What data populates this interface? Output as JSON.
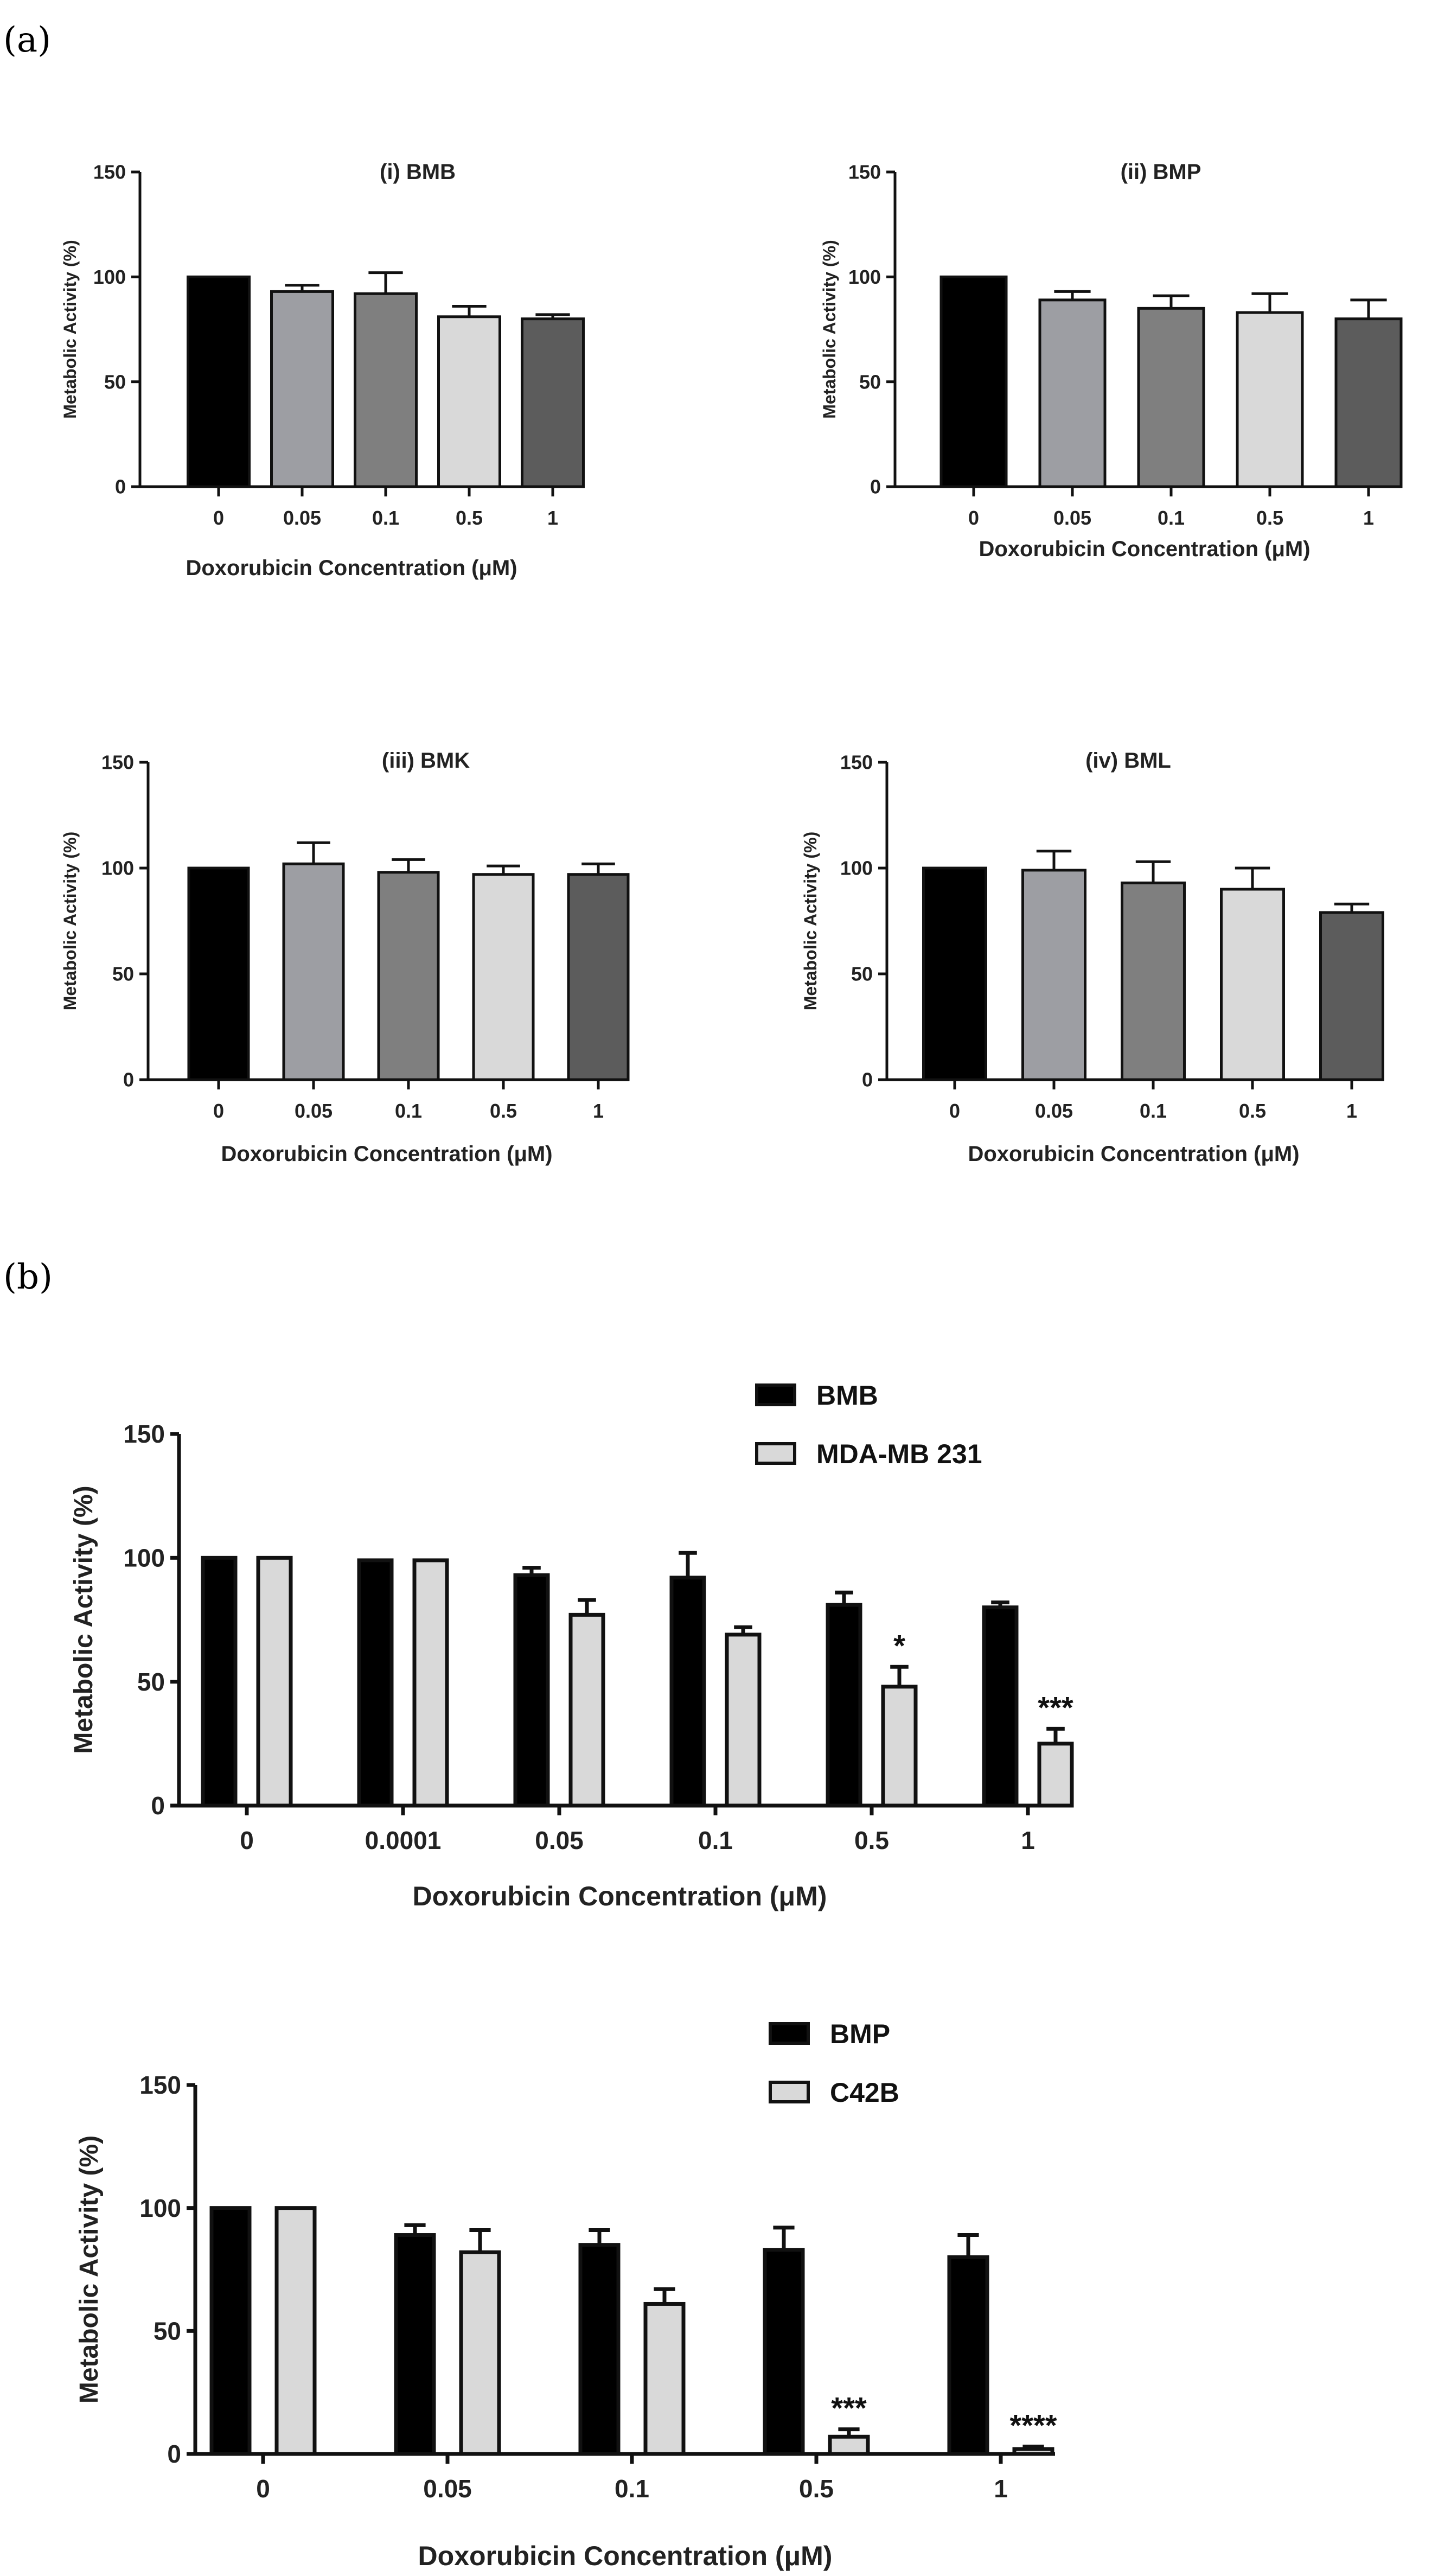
{
  "figure_labels": {
    "a": "(a)",
    "b": "(b)"
  },
  "colors": {
    "level_0": "#000000",
    "level_1": "#9d9ea3",
    "level_2": "#7f7f7f",
    "level_3": "#d9d9d9",
    "level_4": "#5c5c5c",
    "series_dark": "#000000",
    "series_light": "#d9d9d9",
    "axis": "#111111"
  },
  "chart_data": [
    {
      "id": "a1",
      "type": "bar",
      "title": "(i) BMB",
      "xlabel": "Doxorubicin Concentration (μM)",
      "ylabel": "Metabolic Activity (%)",
      "ylim": [
        0,
        150
      ],
      "yticks": [
        0,
        50,
        100,
        150
      ],
      "categories": [
        "0",
        "0.05",
        "0.1",
        "0.5",
        "1"
      ],
      "series": [
        {
          "name": "BMB",
          "values": [
            100,
            93,
            92,
            81,
            80
          ],
          "errors": [
            0,
            3,
            10,
            5,
            2
          ]
        }
      ]
    },
    {
      "id": "a2",
      "type": "bar",
      "title": "(ii) BMP",
      "xlabel": "Doxorubicin Concentration (μM)",
      "ylabel": "Metabolic Activity (%)",
      "ylim": [
        0,
        150
      ],
      "yticks": [
        0,
        50,
        100,
        150
      ],
      "categories": [
        "0",
        "0.05",
        "0.1",
        "0.5",
        "1"
      ],
      "series": [
        {
          "name": "BMP",
          "values": [
            100,
            89,
            85,
            83,
            80
          ],
          "errors": [
            0,
            4,
            6,
            9,
            9
          ]
        }
      ]
    },
    {
      "id": "a3",
      "type": "bar",
      "title": "(iii) BMK",
      "xlabel": "Doxorubicin Concentration (μM)",
      "ylabel": "Metabolic Activity (%)",
      "ylim": [
        0,
        150
      ],
      "yticks": [
        0,
        50,
        100,
        150
      ],
      "categories": [
        "0",
        "0.05",
        "0.1",
        "0.5",
        "1"
      ],
      "series": [
        {
          "name": "BMK",
          "values": [
            100,
            102,
            98,
            97,
            97
          ],
          "errors": [
            0,
            10,
            6,
            4,
            5
          ]
        }
      ]
    },
    {
      "id": "a4",
      "type": "bar",
      "title": "(iv) BML",
      "xlabel": "Doxorubicin Concentration (μM)",
      "ylabel": "Metabolic Activity (%)",
      "ylim": [
        0,
        150
      ],
      "yticks": [
        0,
        50,
        100,
        150
      ],
      "categories": [
        "0",
        "0.05",
        "0.1",
        "0.5",
        "1"
      ],
      "series": [
        {
          "name": "BML",
          "values": [
            100,
            99,
            93,
            90,
            79
          ],
          "errors": [
            0,
            9,
            10,
            10,
            4
          ]
        }
      ]
    },
    {
      "id": "b1",
      "type": "bar",
      "title": "",
      "xlabel": "Doxorubicin Concentration (μM)",
      "ylabel": "Metabolic Activity (%)",
      "ylim": [
        0,
        150
      ],
      "yticks": [
        0,
        50,
        100,
        150
      ],
      "legend": "top-right",
      "categories": [
        "0",
        "0.0001",
        "0.05",
        "0.1",
        "0.5",
        "1"
      ],
      "series": [
        {
          "name": "BMB",
          "values": [
            100,
            99,
            93,
            92,
            81,
            80
          ],
          "errors": [
            0,
            0,
            3,
            10,
            5,
            2
          ]
        },
        {
          "name": "MDA-MB 231",
          "values": [
            100,
            99,
            77,
            69,
            48,
            25
          ],
          "errors": [
            0,
            0,
            6,
            3,
            8,
            6
          ]
        }
      ],
      "annotations": [
        {
          "category": "0.5",
          "series": "MDA-MB 231",
          "text": "*"
        },
        {
          "category": "1",
          "series": "MDA-MB 231",
          "text": "***"
        }
      ]
    },
    {
      "id": "b2",
      "type": "bar",
      "title": "",
      "xlabel": "Doxorubicin Concentration (μM)",
      "ylabel": "Metabolic Activity (%)",
      "ylim": [
        0,
        150
      ],
      "yticks": [
        0,
        50,
        100,
        150
      ],
      "legend": "top-right",
      "categories": [
        "0",
        "0.05",
        "0.1",
        "0.5",
        "1"
      ],
      "series": [
        {
          "name": "BMP",
          "values": [
            100,
            89,
            85,
            83,
            80
          ],
          "errors": [
            0,
            4,
            6,
            9,
            9
          ]
        },
        {
          "name": "C42B",
          "values": [
            100,
            82,
            61,
            7,
            2
          ],
          "errors": [
            0,
            9,
            6,
            3,
            1
          ]
        }
      ],
      "annotations": [
        {
          "category": "0.5",
          "series": "C42B",
          "text": "***"
        },
        {
          "category": "1",
          "series": "C42B",
          "text": "****"
        }
      ]
    }
  ]
}
